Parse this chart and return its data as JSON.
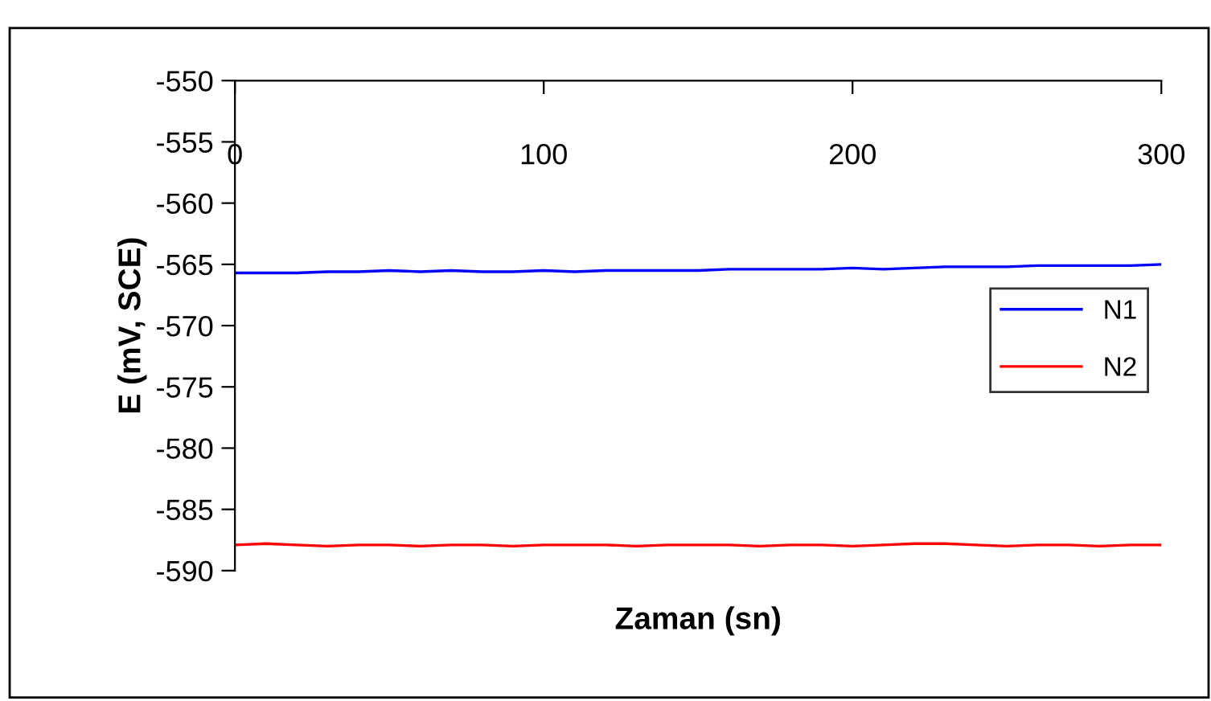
{
  "chart_data": {
    "type": "line",
    "xlabel": "Zaman (sn)",
    "ylabel": "E (mV, SCE)",
    "xlim": [
      0,
      300
    ],
    "xticks": [
      0,
      100,
      200,
      300
    ],
    "ylim": [
      -590,
      -550
    ],
    "yticks": [
      -590,
      -585,
      -580,
      -575,
      -570,
      -565,
      -560,
      -555,
      -550
    ],
    "legend": "right",
    "grid": false,
    "series": [
      {
        "name": "N1",
        "color": "#0000ff",
        "x": [
          0,
          10,
          20,
          30,
          40,
          50,
          60,
          70,
          80,
          90,
          100,
          110,
          120,
          130,
          140,
          150,
          160,
          170,
          180,
          190,
          200,
          210,
          220,
          230,
          240,
          250,
          260,
          270,
          280,
          290,
          300
        ],
        "values": [
          -565.7,
          -565.7,
          -565.7,
          -565.6,
          -565.6,
          -565.5,
          -565.6,
          -565.5,
          -565.6,
          -565.6,
          -565.5,
          -565.6,
          -565.5,
          -565.5,
          -565.5,
          -565.5,
          -565.4,
          -565.4,
          -565.4,
          -565.4,
          -565.3,
          -565.4,
          -565.3,
          -565.2,
          -565.2,
          -565.2,
          -565.1,
          -565.1,
          -565.1,
          -565.1,
          -565.0
        ]
      },
      {
        "name": "N2",
        "color": "#ff0000",
        "x": [
          0,
          10,
          20,
          30,
          40,
          50,
          60,
          70,
          80,
          90,
          100,
          110,
          120,
          130,
          140,
          150,
          160,
          170,
          180,
          190,
          200,
          210,
          220,
          230,
          240,
          250,
          260,
          270,
          280,
          290,
          300
        ],
        "values": [
          -587.9,
          -587.8,
          -587.9,
          -588.0,
          -587.9,
          -587.9,
          -588.0,
          -587.9,
          -587.9,
          -588.0,
          -587.9,
          -587.9,
          -587.9,
          -588.0,
          -587.9,
          -587.9,
          -587.9,
          -588.0,
          -587.9,
          -587.9,
          -588.0,
          -587.9,
          -587.8,
          -587.8,
          -587.9,
          -588.0,
          -587.9,
          -587.9,
          -588.0,
          -587.9,
          -587.9
        ]
      }
    ]
  }
}
